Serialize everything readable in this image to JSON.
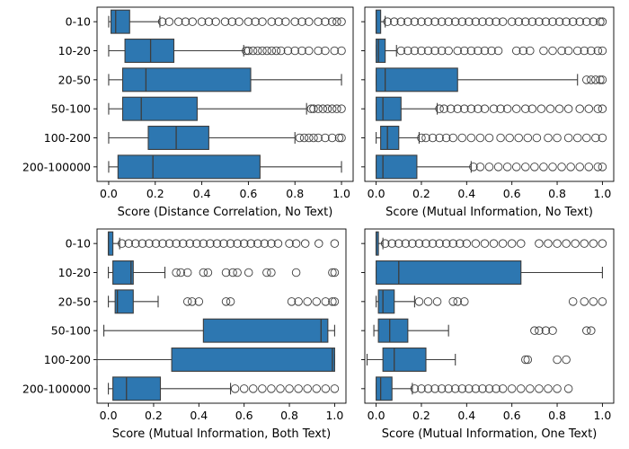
{
  "style": {
    "box_color": "#2d77b1",
    "line_color": "#3d3d3d",
    "flier_edge": "#3d3d3d"
  },
  "chart_data": [
    {
      "type": "box",
      "xlabel": "Score (Distance Correlation, No Text)",
      "xlim": [
        -0.05,
        1.05
      ],
      "xticks": [
        0.0,
        0.2,
        0.4,
        0.6,
        0.8,
        1.0
      ],
      "xtick_labels": [
        "0.0",
        "0.2",
        "0.4",
        "0.6",
        "0.8",
        "1.0"
      ],
      "categories": [
        "0-10",
        "10-20",
        "20-50",
        "50-100",
        "100-200",
        "200-100000"
      ],
      "boxes": [
        {
          "whislo": 0.0,
          "q1": 0.01,
          "med": 0.03,
          "q3": 0.09,
          "whishi": 0.22,
          "fliers": [
            0.23,
            0.26,
            0.3,
            0.33,
            0.36,
            0.4,
            0.43,
            0.46,
            0.5,
            0.53,
            0.56,
            0.6,
            0.63,
            0.66,
            0.7,
            0.73,
            0.76,
            0.8,
            0.83,
            0.86,
            0.9,
            0.93,
            0.96,
            0.98,
            1.0
          ]
        },
        {
          "whislo": 0.0,
          "q1": 0.07,
          "med": 0.18,
          "q3": 0.28,
          "whishi": 0.58,
          "fliers": [
            0.59,
            0.6,
            0.62,
            0.64,
            0.66,
            0.68,
            0.7,
            0.72,
            0.74,
            0.77,
            0.8,
            0.83,
            0.86,
            0.9,
            0.93,
            0.97,
            1.0
          ]
        },
        {
          "whislo": 0.0,
          "q1": 0.06,
          "med": 0.16,
          "q3": 0.61,
          "whishi": 1.0,
          "fliers": []
        },
        {
          "whislo": 0.0,
          "q1": 0.06,
          "med": 0.14,
          "q3": 0.38,
          "whishi": 0.85,
          "fliers": [
            0.87,
            0.88,
            0.9,
            0.92,
            0.94,
            0.96,
            0.98,
            1.0
          ]
        },
        {
          "whislo": 0.0,
          "q1": 0.17,
          "med": 0.29,
          "q3": 0.43,
          "whishi": 0.8,
          "fliers": [
            0.82,
            0.84,
            0.86,
            0.88,
            0.9,
            0.93,
            0.96,
            0.99,
            1.0
          ]
        },
        {
          "whislo": 0.0,
          "q1": 0.04,
          "med": 0.19,
          "q3": 0.65,
          "whishi": 1.0,
          "fliers": []
        }
      ]
    },
    {
      "type": "box",
      "xlabel": "Score (Mutual Information, No Text)",
      "xlim": [
        -0.05,
        1.05
      ],
      "xticks": [
        0.0,
        0.2,
        0.4,
        0.6,
        0.8,
        1.0
      ],
      "xtick_labels": [
        "0.0",
        "0.2",
        "0.4",
        "0.6",
        "0.8",
        "1.0"
      ],
      "categories": [
        "0-10",
        "10-20",
        "20-50",
        "50-100",
        "100-200",
        "200-100000"
      ],
      "boxes": [
        {
          "whislo": 0.0,
          "q1": 0.0,
          "med": 0.0,
          "q3": 0.02,
          "whishi": 0.04,
          "fliers": [
            0.05,
            0.08,
            0.11,
            0.14,
            0.17,
            0.2,
            0.23,
            0.26,
            0.29,
            0.32,
            0.35,
            0.38,
            0.41,
            0.44,
            0.47,
            0.5,
            0.53,
            0.56,
            0.6,
            0.63,
            0.66,
            0.69,
            0.72,
            0.75,
            0.78,
            0.81,
            0.84,
            0.87,
            0.9,
            0.93,
            0.96,
            0.99,
            1.0
          ]
        },
        {
          "whislo": 0.0,
          "q1": 0.0,
          "med": 0.01,
          "q3": 0.04,
          "whishi": 0.09,
          "fliers": [
            0.11,
            0.14,
            0.17,
            0.2,
            0.23,
            0.26,
            0.29,
            0.32,
            0.36,
            0.39,
            0.42,
            0.45,
            0.48,
            0.51,
            0.54,
            0.62,
            0.65,
            0.68,
            0.74,
            0.78,
            0.82,
            0.85,
            0.89,
            0.92,
            0.95,
            0.98,
            1.0
          ]
        },
        {
          "whislo": 0.0,
          "q1": 0.0,
          "med": 0.04,
          "q3": 0.36,
          "whishi": 0.89,
          "fliers": [
            0.93,
            0.95,
            0.97,
            0.99,
            1.0
          ]
        },
        {
          "whislo": 0.0,
          "q1": 0.0,
          "med": 0.03,
          "q3": 0.11,
          "whishi": 0.27,
          "fliers": [
            0.28,
            0.3,
            0.33,
            0.36,
            0.39,
            0.42,
            0.45,
            0.48,
            0.52,
            0.55,
            0.58,
            0.62,
            0.66,
            0.69,
            0.73,
            0.77,
            0.81,
            0.85,
            0.9,
            0.94,
            0.98,
            1.0
          ]
        },
        {
          "whislo": 0.0,
          "q1": 0.02,
          "med": 0.05,
          "q3": 0.1,
          "whishi": 0.19,
          "fliers": [
            0.2,
            0.22,
            0.25,
            0.28,
            0.31,
            0.34,
            0.38,
            0.42,
            0.46,
            0.5,
            0.55,
            0.59,
            0.63,
            0.67,
            0.71,
            0.76,
            0.8,
            0.85,
            0.89,
            0.93,
            0.97,
            1.0
          ]
        },
        {
          "whislo": 0.0,
          "q1": 0.0,
          "med": 0.03,
          "q3": 0.18,
          "whishi": 0.42,
          "fliers": [
            0.43,
            0.46,
            0.5,
            0.54,
            0.58,
            0.62,
            0.66,
            0.7,
            0.74,
            0.78,
            0.82,
            0.86,
            0.9,
            0.94,
            0.98,
            1.0
          ]
        }
      ]
    },
    {
      "type": "box",
      "xlabel": "Score (Mutual Information, Both Text)",
      "xlim": [
        -0.05,
        1.05
      ],
      "xticks": [
        0.0,
        0.2,
        0.4,
        0.6,
        0.8,
        1.0
      ],
      "xtick_labels": [
        "0.0",
        "0.2",
        "0.4",
        "0.6",
        "0.8",
        "1.0"
      ],
      "categories": [
        "0-10",
        "10-20",
        "20-50",
        "50-100",
        "100-200",
        "200-100000"
      ],
      "boxes": [
        {
          "whislo": 0.0,
          "q1": 0.0,
          "med": 0.0,
          "q3": 0.02,
          "whishi": 0.05,
          "fliers": [
            0.06,
            0.09,
            0.12,
            0.15,
            0.18,
            0.21,
            0.24,
            0.27,
            0.3,
            0.33,
            0.36,
            0.39,
            0.42,
            0.45,
            0.48,
            0.51,
            0.54,
            0.57,
            0.6,
            0.63,
            0.66,
            0.69,
            0.72,
            0.75,
            0.8,
            0.83,
            0.87,
            0.93,
            1.0
          ]
        },
        {
          "whislo": 0.0,
          "q1": 0.02,
          "med": 0.1,
          "q3": 0.11,
          "whishi": 0.25,
          "fliers": [
            0.3,
            0.32,
            0.35,
            0.42,
            0.44,
            0.52,
            0.55,
            0.57,
            0.62,
            0.7,
            0.72,
            0.83,
            0.99,
            1.0
          ]
        },
        {
          "whislo": 0.0,
          "q1": 0.03,
          "med": 0.04,
          "q3": 0.11,
          "whishi": 0.22,
          "fliers": [
            0.35,
            0.37,
            0.4,
            0.52,
            0.54,
            0.81,
            0.84,
            0.88,
            0.92,
            0.96,
            0.99,
            1.0
          ]
        },
        {
          "whislo": -0.02,
          "q1": 0.42,
          "med": 0.94,
          "q3": 0.97,
          "whishi": 1.0,
          "fliers": []
        },
        {
          "whislo": -0.05,
          "q1": 0.28,
          "med": 0.99,
          "q3": 1.0,
          "whishi": 1.0,
          "fliers": []
        },
        {
          "whislo": 0.0,
          "q1": 0.02,
          "med": 0.08,
          "q3": 0.23,
          "whishi": 0.54,
          "fliers": [
            0.56,
            0.6,
            0.64,
            0.68,
            0.72,
            0.76,
            0.8,
            0.84,
            0.88,
            0.92,
            0.96,
            1.0
          ]
        }
      ]
    },
    {
      "type": "box",
      "xlabel": "Score (Mutual Information, One Text)",
      "xlim": [
        -0.05,
        1.05
      ],
      "xticks": [
        0.0,
        0.2,
        0.4,
        0.6,
        0.8,
        1.0
      ],
      "xtick_labels": [
        "0.0",
        "0.2",
        "0.4",
        "0.6",
        "0.8",
        "1.0"
      ],
      "categories": [
        "0-10",
        "10-20",
        "20-50",
        "50-100",
        "100-200",
        "200-100000"
      ],
      "boxes": [
        {
          "whislo": 0.0,
          "q1": 0.0,
          "med": 0.0,
          "q3": 0.01,
          "whishi": 0.03,
          "fliers": [
            0.04,
            0.07,
            0.1,
            0.13,
            0.16,
            0.19,
            0.22,
            0.25,
            0.28,
            0.31,
            0.34,
            0.37,
            0.4,
            0.44,
            0.48,
            0.52,
            0.56,
            0.6,
            0.64,
            0.72,
            0.76,
            0.8,
            0.84,
            0.88,
            0.92,
            0.96,
            1.0
          ]
        },
        {
          "whislo": 0.0,
          "q1": 0.0,
          "med": 0.1,
          "q3": 0.64,
          "whishi": 1.0,
          "fliers": []
        },
        {
          "whislo": 0.0,
          "q1": 0.01,
          "med": 0.03,
          "q3": 0.08,
          "whishi": 0.17,
          "fliers": [
            0.19,
            0.23,
            0.27,
            0.34,
            0.36,
            0.39,
            0.87,
            0.92,
            0.96,
            1.0
          ]
        },
        {
          "whislo": -0.01,
          "q1": 0.01,
          "med": 0.06,
          "q3": 0.14,
          "whishi": 0.32,
          "fliers": [
            0.7,
            0.72,
            0.75,
            0.78,
            0.93,
            0.95
          ]
        },
        {
          "whislo": -0.04,
          "q1": 0.03,
          "med": 0.08,
          "q3": 0.22,
          "whishi": 0.35,
          "fliers": [
            0.66,
            0.67,
            0.8,
            0.84
          ]
        },
        {
          "whislo": 0.0,
          "q1": 0.0,
          "med": 0.02,
          "q3": 0.07,
          "whishi": 0.16,
          "fliers": [
            0.17,
            0.2,
            0.23,
            0.26,
            0.29,
            0.32,
            0.35,
            0.38,
            0.41,
            0.44,
            0.47,
            0.5,
            0.53,
            0.56,
            0.6,
            0.64,
            0.68,
            0.72,
            0.76,
            0.8,
            0.85
          ]
        }
      ]
    }
  ]
}
